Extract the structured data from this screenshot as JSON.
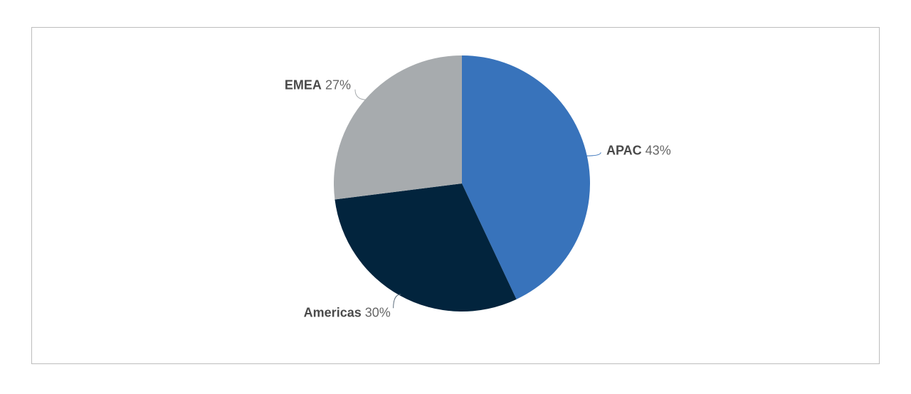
{
  "chart_data": {
    "type": "pie",
    "categories": [
      "APAC",
      "Americas",
      "EMEA"
    ],
    "values": [
      43,
      30,
      27
    ],
    "value_labels": [
      "43%",
      "30%",
      "27%"
    ],
    "colors": [
      "#3873bb",
      "#02243d",
      "#a7abae"
    ]
  }
}
